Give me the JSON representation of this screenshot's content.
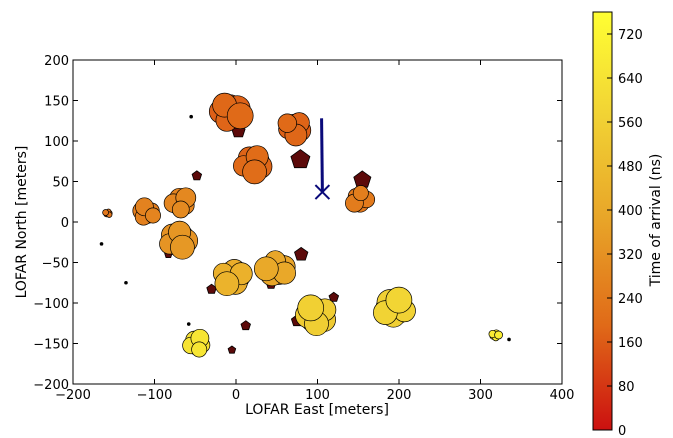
{
  "chart_data": {
    "type": "scatter",
    "xlabel": "LOFAR East [meters]",
    "ylabel": "LOFAR North [meters]",
    "xlim": [
      -200,
      400
    ],
    "ylim": [
      -200,
      200
    ],
    "xticks": [
      -200,
      -100,
      0,
      100,
      200,
      300,
      400
    ],
    "xtick_labels": [
      "−200",
      "−100",
      "0",
      "100",
      "200",
      "300",
      "400"
    ],
    "yticks": [
      -200,
      -150,
      -100,
      -50,
      0,
      50,
      100,
      150,
      200
    ],
    "ytick_labels": [
      "−200",
      "−150",
      "−100",
      "−50",
      "0",
      "50",
      "100",
      "150",
      "200"
    ],
    "grid": false,
    "colorbar": {
      "label": "Time of arrival (ns)",
      "range": [
        0,
        760
      ],
      "ticks": [
        0,
        80,
        160,
        240,
        320,
        400,
        480,
        560,
        640,
        720
      ],
      "tick_labels": [
        "0",
        "80",
        "160",
        "240",
        "320",
        "400",
        "480",
        "560",
        "640",
        "720"
      ],
      "colormap": [
        "#cc1010",
        "#e06a18",
        "#e8a428",
        "#f1d234",
        "#ffff33"
      ]
    },
    "pentagon_color": "#5c0a0a",
    "arrow_color": "#0a0a7a",
    "shower_axis": {
      "x_start": 105,
      "y_start": 128,
      "x_core": 106,
      "y_core": 37
    },
    "stations": [
      {
        "x": -8,
        "y": 135,
        "t": 170,
        "s": 13
      },
      {
        "x": 20,
        "y": 72,
        "t": 180,
        "s": 12
      },
      {
        "x": 72,
        "y": 116,
        "t": 175,
        "s": 11
      },
      {
        "x": 152,
        "y": 28,
        "t": 240,
        "s": 9
      },
      {
        "x": -157,
        "y": 11,
        "t": 220,
        "s": 3
      },
      {
        "x": -110,
        "y": 12,
        "t": 260,
        "s": 9
      },
      {
        "x": -68,
        "y": 24,
        "t": 280,
        "s": 10
      },
      {
        "x": -72,
        "y": -22,
        "t": 320,
        "s": 12
      },
      {
        "x": -5,
        "y": -67,
        "t": 420,
        "s": 12
      },
      {
        "x": 50,
        "y": -57,
        "t": 380,
        "s": 12
      },
      {
        "x": 100,
        "y": -115,
        "t": 540,
        "s": 13
      },
      {
        "x": 195,
        "y": -107,
        "t": 560,
        "s": 13
      },
      {
        "x": -48,
        "y": -150,
        "t": 640,
        "s": 9
      },
      {
        "x": 318,
        "y": -140,
        "t": 670,
        "s": 4
      }
    ],
    "small_dots": [
      {
        "x": -55,
        "y": 130
      },
      {
        "x": -165,
        "y": -27
      },
      {
        "x": -135,
        "y": -75
      },
      {
        "x": -58,
        "y": -126
      },
      {
        "x": 100,
        "y": -127
      },
      {
        "x": 335,
        "y": -145
      }
    ],
    "pentagons": [
      {
        "x": 3,
        "y": 112,
        "s": 7
      },
      {
        "x": 79,
        "y": 77,
        "s": 10
      },
      {
        "x": 155,
        "y": 52,
        "s": 9
      },
      {
        "x": -48,
        "y": 57,
        "s": 5
      },
      {
        "x": -118,
        "y": 5,
        "s": 4
      },
      {
        "x": -83,
        "y": -40,
        "s": 4
      },
      {
        "x": 80,
        "y": -40,
        "s": 7
      },
      {
        "x": -30,
        "y": -83,
        "s": 5
      },
      {
        "x": 43,
        "y": -77,
        "s": 5
      },
      {
        "x": 12,
        "y": -128,
        "s": 5
      },
      {
        "x": 75,
        "y": -122,
        "s": 6
      },
      {
        "x": 120,
        "y": -93,
        "s": 5
      },
      {
        "x": -5,
        "y": -158,
        "s": 4
      }
    ]
  }
}
